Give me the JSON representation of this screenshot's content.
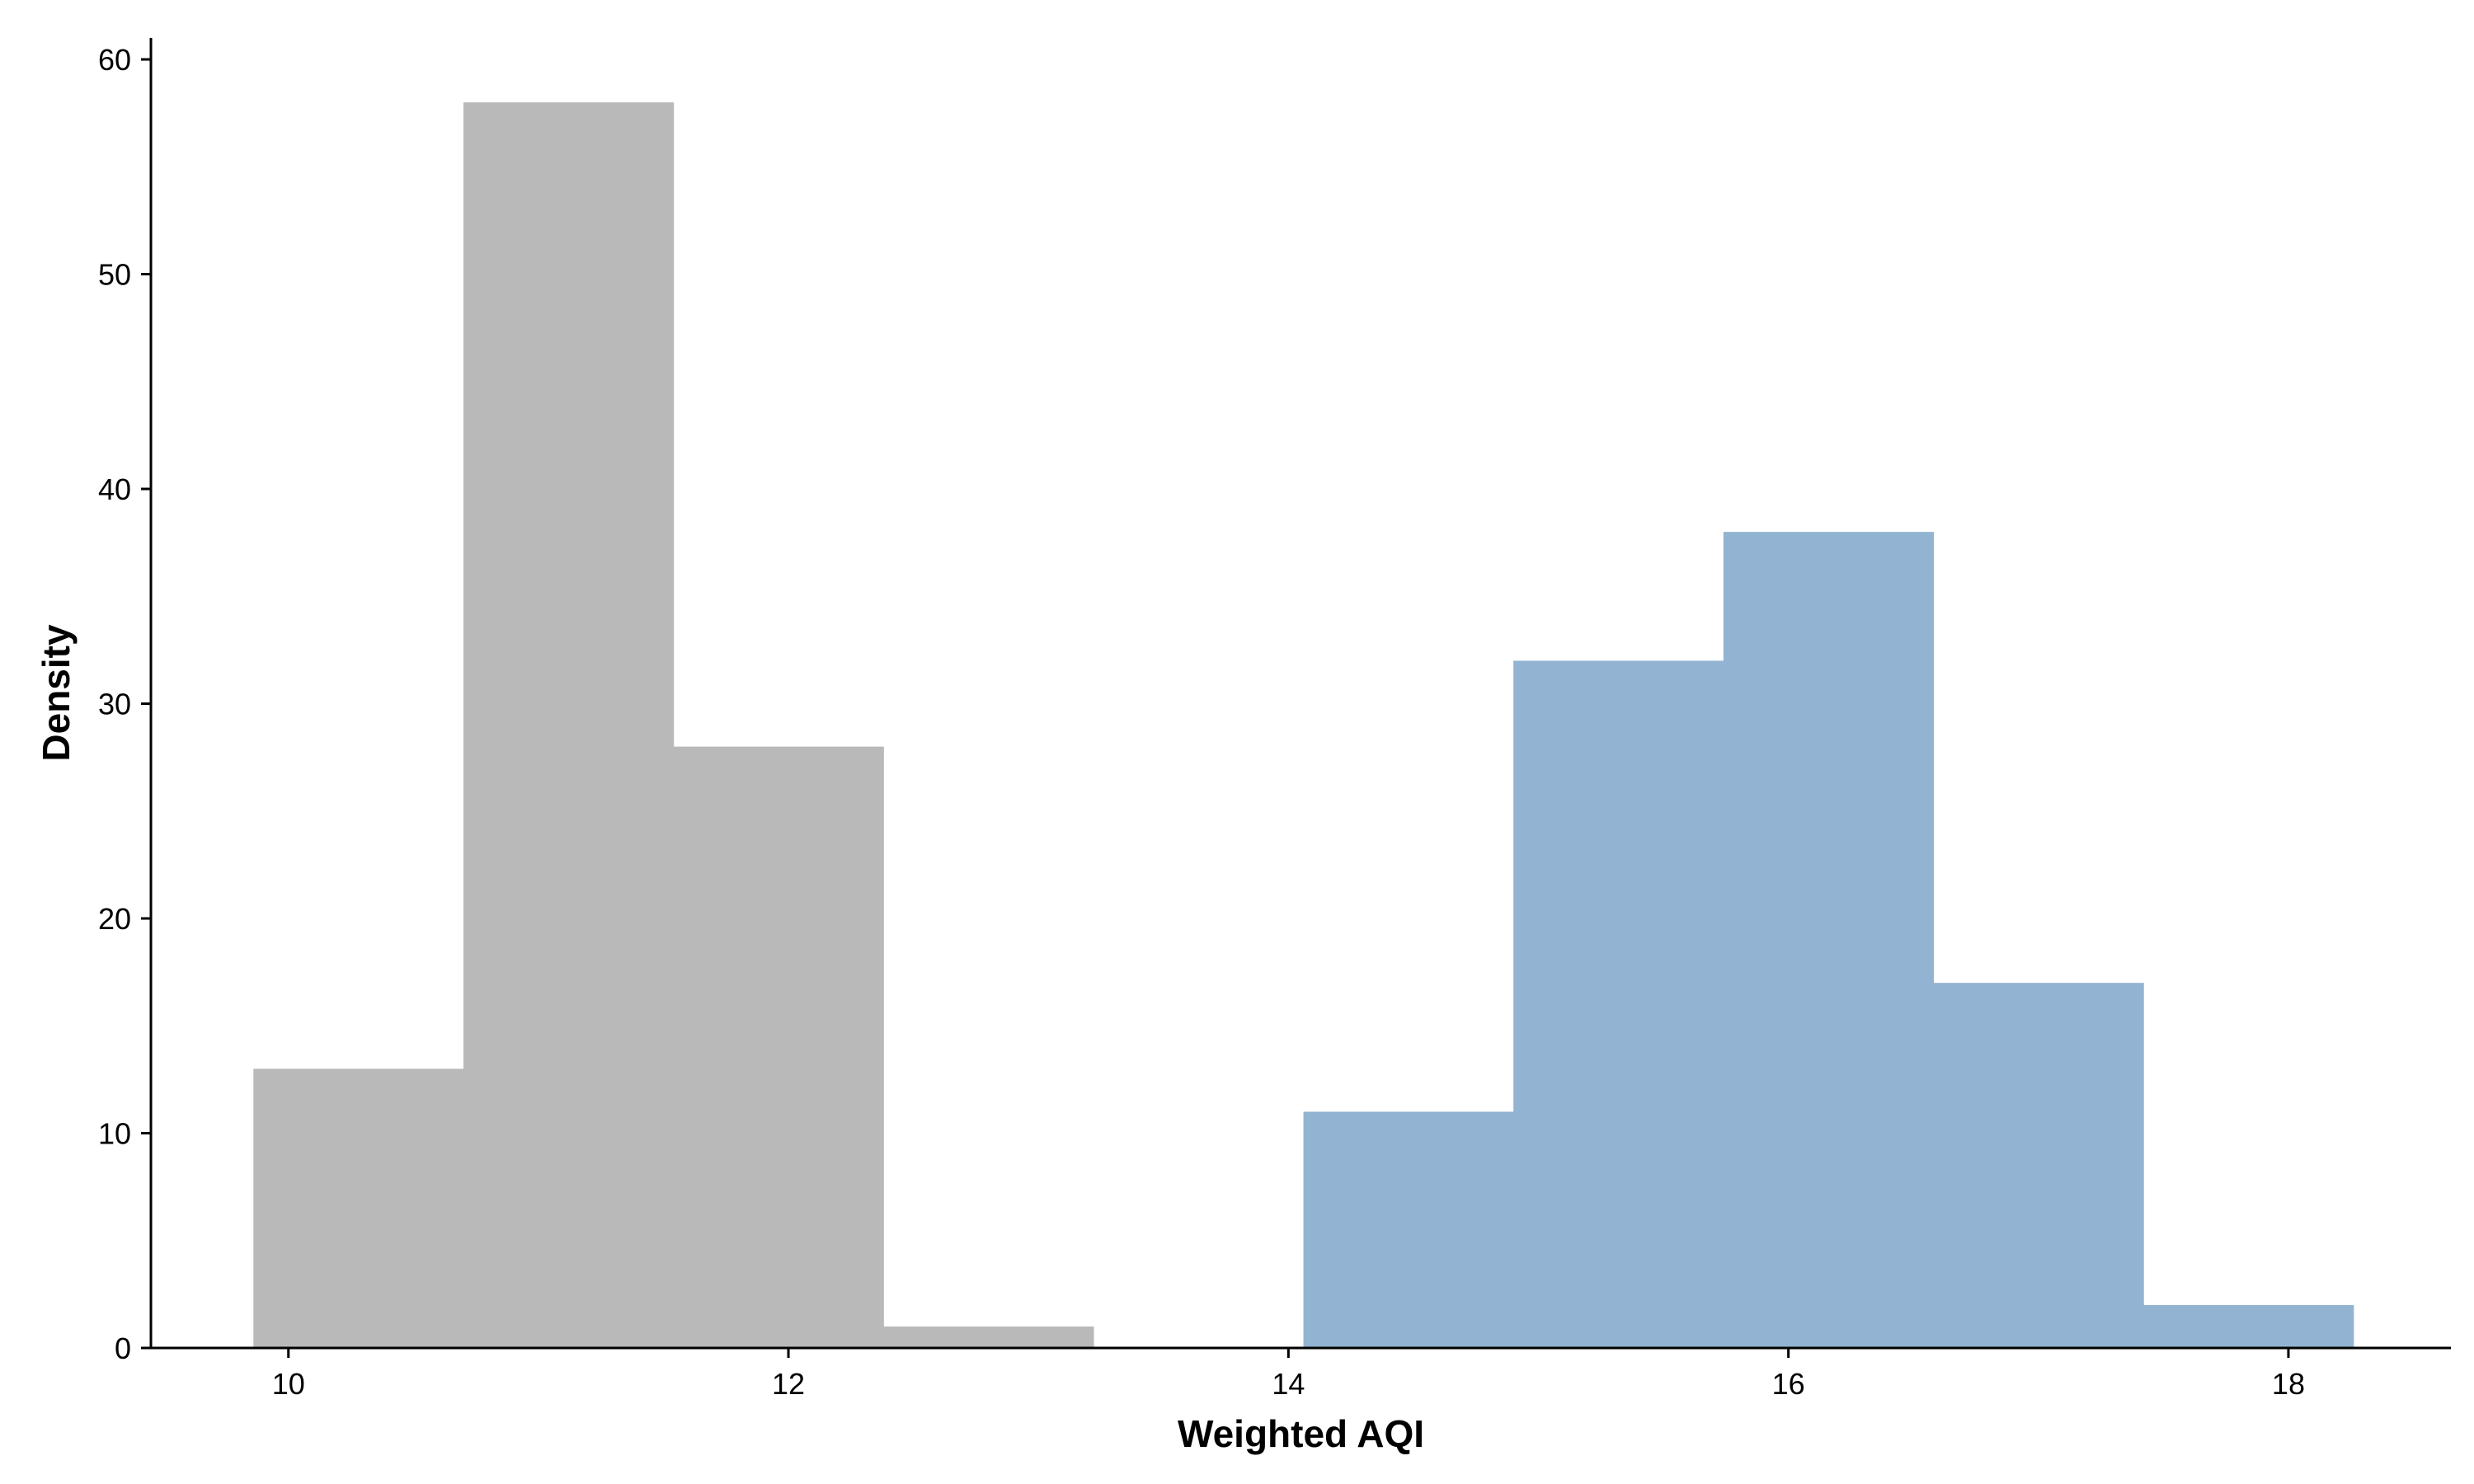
{
  "chart_data": {
    "type": "histogram",
    "xlabel": "Weighted AQI",
    "ylabel": "Density",
    "xlim": [
      9.45,
      18.65
    ],
    "ylim": [
      0,
      61
    ],
    "xticks": [
      10,
      12,
      14,
      16,
      18
    ],
    "yticks": [
      0,
      10,
      20,
      30,
      40,
      50,
      60
    ],
    "grid": false,
    "series": [
      {
        "color": "#b9b9b9",
        "bins": [
          {
            "x0": 9.86,
            "x1": 10.7,
            "value": 13
          },
          {
            "x0": 10.7,
            "x1": 11.54,
            "value": 58
          },
          {
            "x0": 11.54,
            "x1": 12.38,
            "value": 28
          },
          {
            "x0": 12.38,
            "x1": 13.22,
            "value": 1
          }
        ]
      },
      {
        "color": "#92b4d2",
        "bins": [
          {
            "x0": 14.06,
            "x1": 14.9,
            "value": 11
          },
          {
            "x0": 14.9,
            "x1": 15.74,
            "value": 32
          },
          {
            "x0": 15.74,
            "x1": 16.58,
            "value": 38
          },
          {
            "x0": 16.58,
            "x1": 17.42,
            "value": 17
          },
          {
            "x0": 17.42,
            "x1": 18.26,
            "value": 2
          }
        ]
      }
    ]
  }
}
